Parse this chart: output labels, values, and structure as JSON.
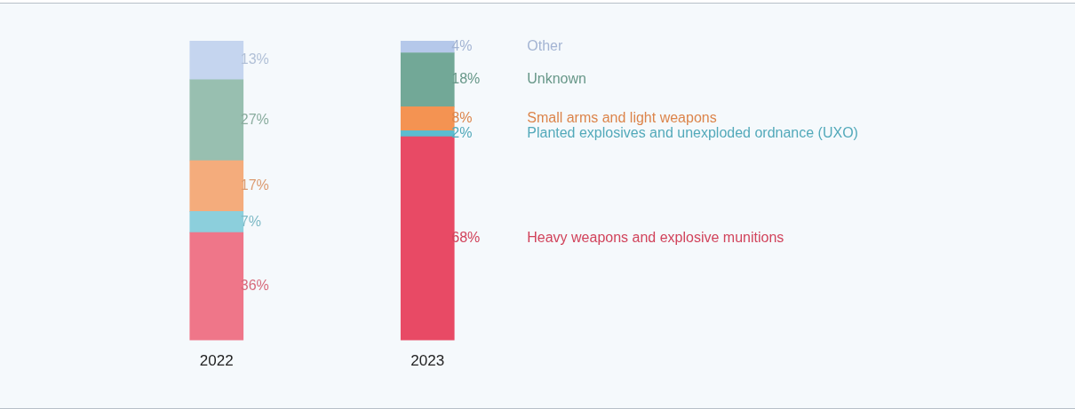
{
  "chart_data": {
    "type": "bar",
    "stacked": true,
    "categories": [
      "2022",
      "2023"
    ],
    "legend": false,
    "grid": false,
    "series": [
      {
        "name": "Heavy weapons and explosive munitions",
        "colors": [
          "#ef7689",
          "#e84a65"
        ],
        "values": [
          36,
          68
        ],
        "value_labels": [
          "36%",
          "68%"
        ]
      },
      {
        "name": "Planted explosives and unexploded ordnance (UXO)",
        "colors": [
          "#8ccfdc",
          "#5bbccf"
        ],
        "values": [
          7,
          2
        ],
        "value_labels": [
          "7%",
          "2%"
        ]
      },
      {
        "name": "Small arms and light weapons",
        "colors": [
          "#f4ac7c",
          "#f49352"
        ],
        "values": [
          17,
          8
        ],
        "value_labels": [
          "17%",
          "8%"
        ]
      },
      {
        "name": "Unknown",
        "colors": [
          "#98bfb0",
          "#72a897"
        ],
        "values": [
          27,
          18
        ],
        "value_labels": [
          "27%",
          "18%"
        ]
      },
      {
        "name": "Other",
        "colors": [
          "#c5d5ef",
          "#b5c8ea"
        ],
        "values": [
          13,
          4
        ],
        "value_labels": [
          "13%",
          "4%"
        ]
      }
    ]
  }
}
